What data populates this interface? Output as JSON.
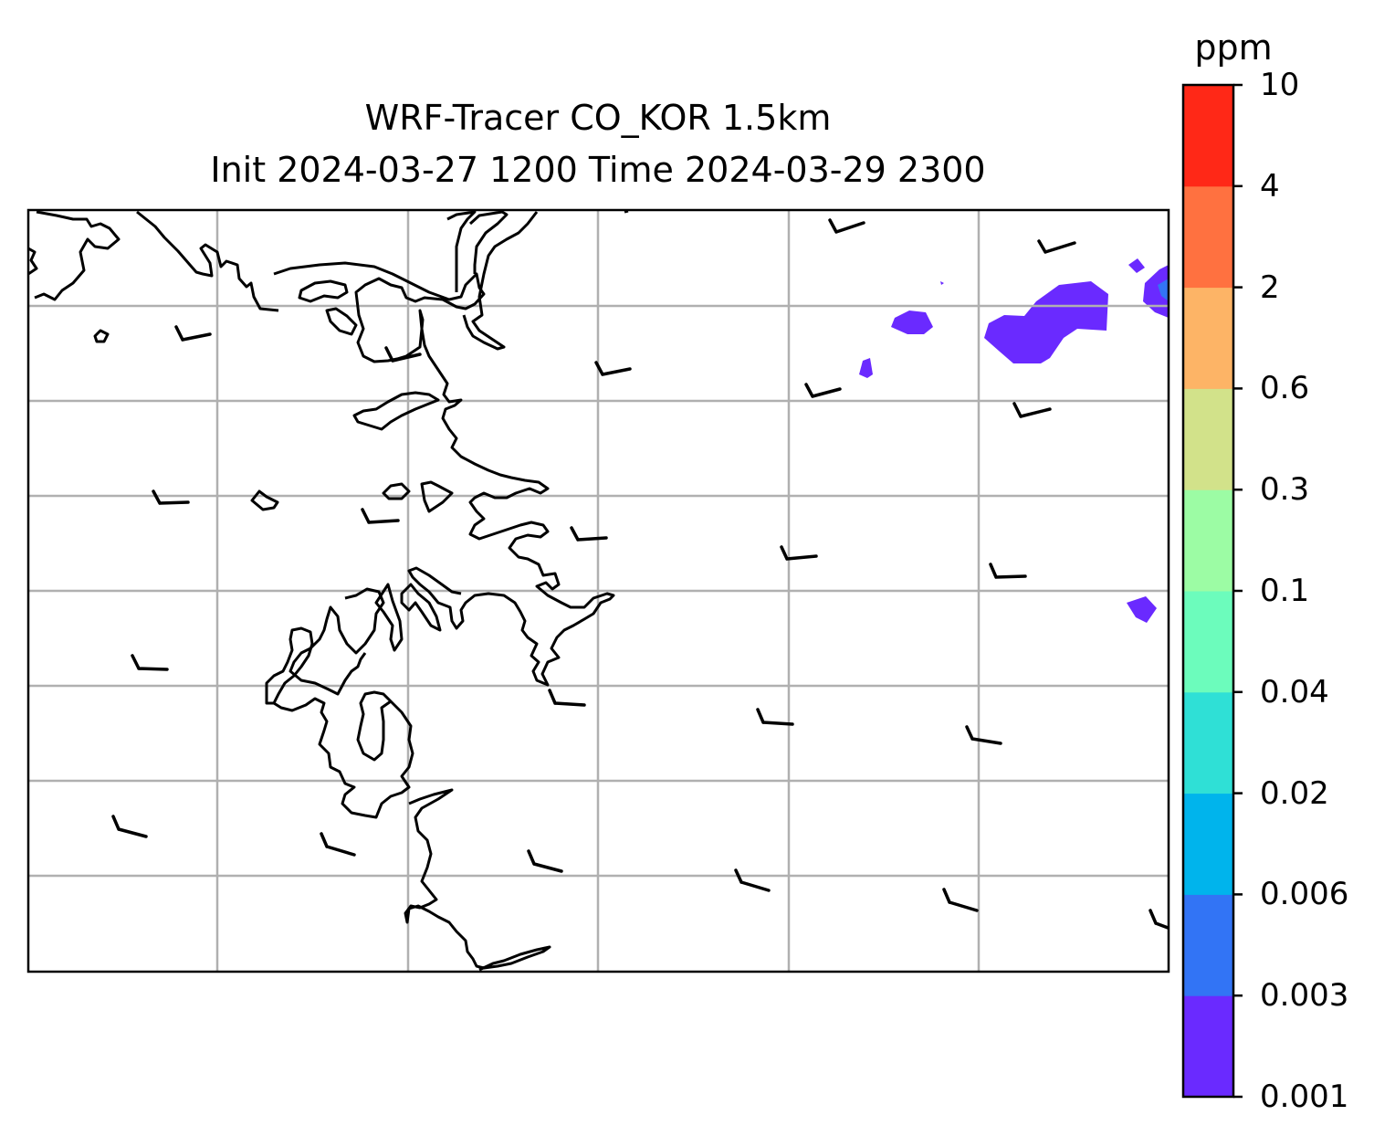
{
  "title": {
    "line1": "WRF-Tracer CO_KOR 1.5km",
    "line2": "Init 2024-03-27 1200 Time 2024-03-29 2300"
  },
  "map": {
    "gridlines": "on",
    "coastline_color": "#000000",
    "gridline_color": "#b0b0b0",
    "wind_barbs": "on"
  },
  "colorbar": {
    "unit": "ppm",
    "levels": [
      "0.001",
      "0.003",
      "0.006",
      "0.02",
      "0.04",
      "0.1",
      "0.3",
      "0.6",
      "2",
      "4",
      "10"
    ],
    "colors": [
      "#6a2aff",
      "#3274f5",
      "#00b4ec",
      "#2fe0d6",
      "#6cfcbc",
      "#9cfca4",
      "#d2e28a",
      "#fdb466",
      "#ff7140",
      "#ff2817"
    ]
  }
}
